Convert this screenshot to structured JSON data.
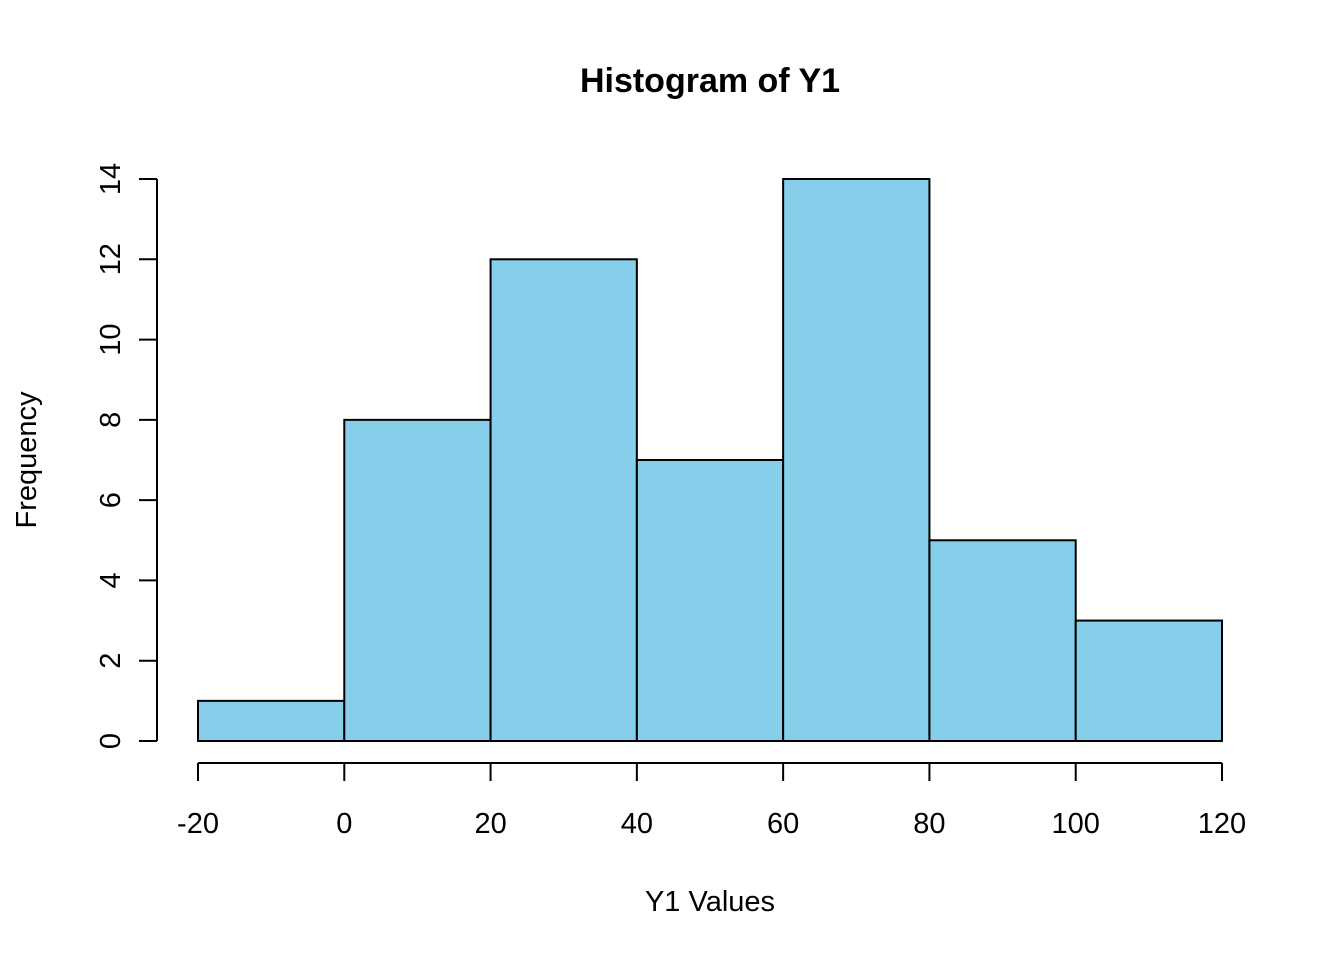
{
  "chart_data": {
    "type": "bar",
    "title": "Histogram of Y1",
    "xlabel": "Y1 Values",
    "ylabel": "Frequency",
    "bins": [
      {
        "start": -20,
        "end": 0,
        "count": 1
      },
      {
        "start": 0,
        "end": 20,
        "count": 8
      },
      {
        "start": 20,
        "end": 40,
        "count": 12
      },
      {
        "start": 40,
        "end": 60,
        "count": 7
      },
      {
        "start": 60,
        "end": 80,
        "count": 14
      },
      {
        "start": 80,
        "end": 100,
        "count": 5
      },
      {
        "start": 100,
        "end": 120,
        "count": 3
      }
    ],
    "xlim": [
      -20,
      120
    ],
    "ylim": [
      0,
      14
    ],
    "xticks": [
      -20,
      0,
      20,
      40,
      60,
      80,
      100,
      120
    ],
    "xtick_labels": [
      "-20",
      "0",
      "20",
      "40",
      "60",
      "80",
      "100",
      "120"
    ],
    "yticks": [
      0,
      2,
      4,
      6,
      8,
      10,
      12,
      14
    ],
    "ytick_labels": [
      "0",
      "2",
      "4",
      "6",
      "8",
      "10",
      "12",
      "14"
    ],
    "bar_color": "#87CEEB",
    "edge_color": "#000000",
    "grid": false,
    "legend": "none"
  }
}
